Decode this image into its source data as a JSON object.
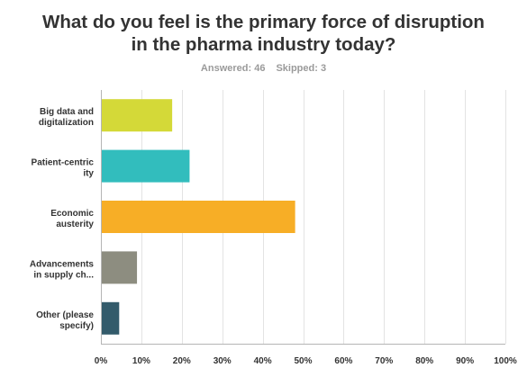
{
  "title": "What do you feel is the primary force of disruption in the pharma industry today?",
  "answered_label": "Answered: 46",
  "skipped_label": "Skipped: 3",
  "chart_data": {
    "type": "bar",
    "orientation": "horizontal",
    "categories": [
      [
        "Big data and",
        "digitalization"
      ],
      [
        "Patient-centric",
        "ity"
      ],
      [
        "Economic",
        "austerity"
      ],
      [
        "Advancements",
        "in supply ch..."
      ],
      [
        "Other (please",
        "specify)"
      ]
    ],
    "values": [
      17.4,
      21.7,
      47.8,
      8.7,
      4.3
    ],
    "colors": [
      "#d4d938",
      "#32bdbd",
      "#f7ae26",
      "#8d8d80",
      "#335b6b"
    ],
    "xlim": [
      0,
      100
    ],
    "xticks": [
      "0%",
      "10%",
      "20%",
      "30%",
      "40%",
      "50%",
      "60%",
      "70%",
      "80%",
      "90%",
      "100%"
    ],
    "grid": true
  }
}
